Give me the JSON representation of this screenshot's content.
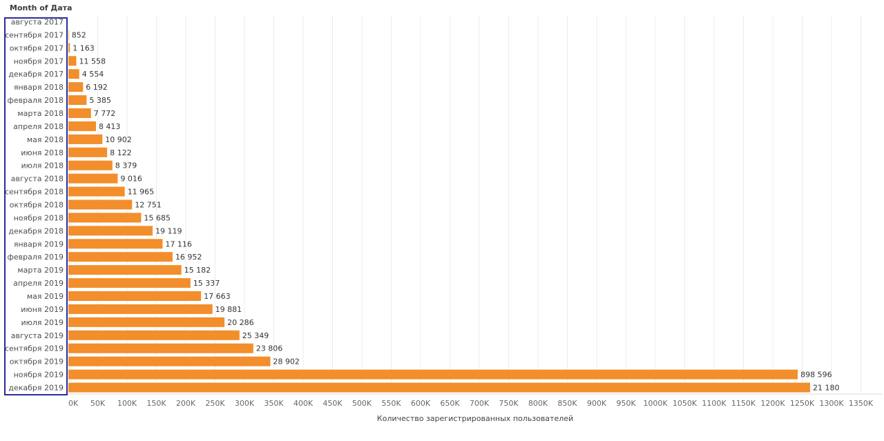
{
  "header": {
    "title": "Month of Дата"
  },
  "chart_data": {
    "type": "bar",
    "orientation": "horizontal",
    "title": "",
    "ylabel": "Month of Дата",
    "xlabel": "Количество зарегистрированных пользователей",
    "xlim": [
      0,
      1350000
    ],
    "grid": true,
    "bar_color": "#f28e2b",
    "categories": [
      "августа 2017",
      "сентября 2017",
      "октября 2017",
      "ноября 2017",
      "декабря 2017",
      "января 2018",
      "февраля 2018",
      "марта 2018",
      "апреля 2018",
      "мая 2018",
      "июня 2018",
      "июля 2018",
      "августа 2018",
      "сентября 2018",
      "октября 2018",
      "ноября 2018",
      "декабря 2018",
      "января 2019",
      "февраля 2019",
      "марта 2019",
      "апреля 2019",
      "мая 2019",
      "июня 2019",
      "июля 2019",
      "августа 2019",
      "сентября 2019",
      "октября 2019",
      "ноября 2019",
      "декабря 2019"
    ],
    "values": [
      0,
      852,
      2700,
      13500,
      18500,
      25000,
      31000,
      38500,
      47000,
      58000,
      66000,
      75000,
      84000,
      96000,
      108500,
      124000,
      143500,
      160500,
      177500,
      192500,
      208000,
      226000,
      245500,
      266000,
      291500,
      315000,
      344000,
      1242500,
      1263500
    ],
    "labels": [
      "",
      "852",
      "1 163",
      "11 558",
      "4 554",
      "6 192",
      "5 385",
      "7 772",
      "8 413",
      "10 902",
      "8 122",
      "8 379",
      "9 016",
      "11 965",
      "12 751",
      "15 685",
      "19 119",
      "17 116",
      "16 952",
      "15 182",
      "15 337",
      "17 663",
      "19 881",
      "20 286",
      "25 349",
      "23 806",
      "28 902",
      "898 596",
      "21 180"
    ],
    "xticks": [
      "0K",
      "50K",
      "100K",
      "150K",
      "200K",
      "250K",
      "300K",
      "350K",
      "400K",
      "450K",
      "500K",
      "550K",
      "600K",
      "650K",
      "700K",
      "750K",
      "800K",
      "850K",
      "900K",
      "950K",
      "1000K",
      "1050K",
      "1100K",
      "1150K",
      "1200K",
      "1250K",
      "1300K",
      "1350K"
    ]
  }
}
